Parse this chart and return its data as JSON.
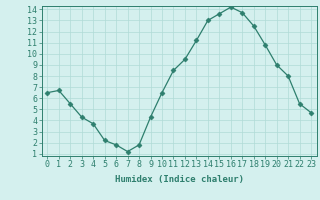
{
  "x": [
    0,
    1,
    2,
    3,
    4,
    5,
    6,
    7,
    8,
    9,
    10,
    11,
    12,
    13,
    14,
    15,
    16,
    17,
    18,
    19,
    20,
    21,
    22,
    23
  ],
  "y": [
    6.5,
    6.7,
    5.5,
    4.3,
    3.7,
    2.2,
    1.8,
    1.2,
    1.8,
    4.3,
    6.5,
    8.5,
    9.5,
    11.2,
    13.0,
    13.6,
    14.2,
    13.7,
    12.5,
    10.8,
    9.0,
    8.0,
    5.5,
    4.7
  ],
  "line_color": "#2e7f6e",
  "marker": "D",
  "marker_size": 2.5,
  "bg_color": "#d4f0ee",
  "grid_color": "#b0dbd7",
  "xlabel": "Humidex (Indice chaleur)",
  "xlim": [
    -0.5,
    23.5
  ],
  "ylim_min": 0.8,
  "ylim_max": 14.3,
  "yticks": [
    1,
    2,
    3,
    4,
    5,
    6,
    7,
    8,
    9,
    10,
    11,
    12,
    13,
    14
  ],
  "xticks": [
    0,
    1,
    2,
    3,
    4,
    5,
    6,
    7,
    8,
    9,
    10,
    11,
    12,
    13,
    14,
    15,
    16,
    17,
    18,
    19,
    20,
    21,
    22,
    23
  ],
  "label_fontsize": 6.5,
  "tick_fontsize": 6.0
}
